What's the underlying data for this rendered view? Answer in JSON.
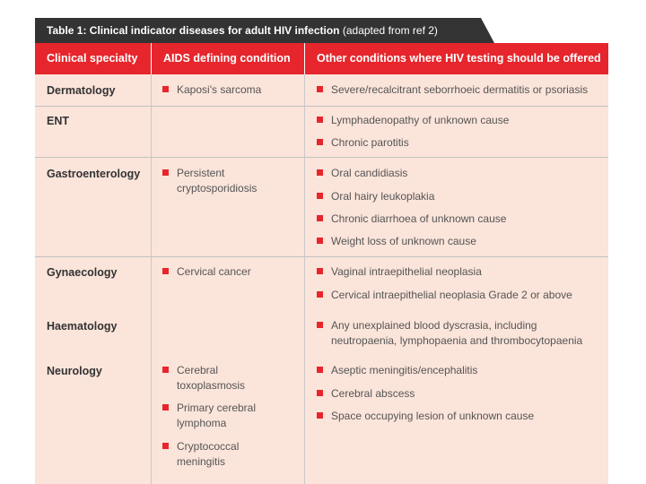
{
  "title": {
    "bold": "Table 1: Clinical indicator diseases for adult HIV infection",
    "normal": "(adapted from ref 2)"
  },
  "headers": [
    "Clinical specialty",
    "AIDS defining condition",
    "Other conditions where HIV testing should be offered"
  ],
  "rows": {
    "dermatology": {
      "specialty": "Dermatology",
      "aids": [
        "Kaposi's sarcoma"
      ],
      "other": [
        "Severe/recalcitrant seborrhoeic dermatitis or psoriasis"
      ]
    },
    "ent": {
      "specialty": "ENT",
      "aids": [],
      "other": [
        "Lymphadenopathy of unknown cause",
        "Chronic parotitis"
      ]
    },
    "gastro": {
      "specialty": "Gastroenterology",
      "aids": [
        "Persistent cryptosporidiosis"
      ],
      "other": [
        "Oral candidiasis",
        "Oral hairy leukoplakia",
        "Chronic diarrhoea of unknown cause",
        "Weight loss of unknown cause"
      ]
    },
    "gynae": {
      "specialty": "Gynaecology",
      "aids": [
        "Cervical cancer"
      ],
      "other": [
        "Vaginal intraepithelial neoplasia",
        "Cervical intraepithelial neoplasia Grade 2 or above"
      ]
    },
    "haem": {
      "specialty": "Haematology",
      "aids": [],
      "other": [
        "Any unexplained blood dyscrasia, including neutropaenia, lymphopaenia and thrombocytopaenia"
      ]
    },
    "neuro": {
      "specialty": "Neurology",
      "aids": [
        "Cerebral toxoplasmosis",
        "Primary cerebral lymphoma",
        "Cryptococcal meningitis"
      ],
      "other": [
        "Aseptic meningitis/encephalitis",
        "Cerebral abscess",
        "Space occupying lesion of unknown cause"
      ]
    }
  },
  "colors": {
    "accent": "#e6262c",
    "title_bg": "#333333",
    "cell_bg": "#fbe4da"
  }
}
